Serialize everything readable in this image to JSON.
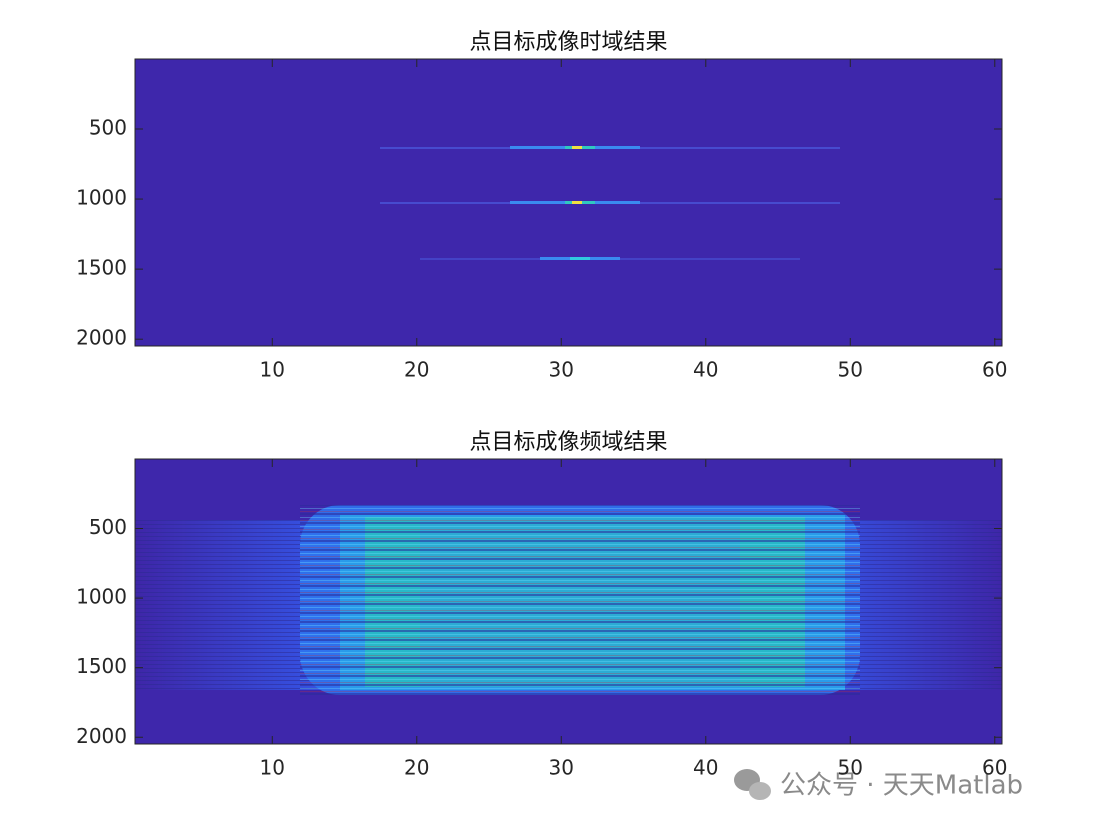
{
  "chart_data": [
    {
      "type": "heatmap",
      "title": "点目标成像时域结果",
      "xlim": [
        0.5,
        60.5
      ],
      "xticks": [
        10,
        20,
        30,
        40,
        50,
        60
      ],
      "ylim": [
        0.5,
        2048.5
      ],
      "yticks": [
        500,
        1000,
        1500,
        2000
      ],
      "y_reversed": true
    },
    {
      "type": "heatmap",
      "title": "点目标成像频域结果",
      "xlim": [
        0.5,
        60.5
      ],
      "xticks": [
        10,
        20,
        30,
        40,
        50,
        60
      ],
      "ylim": [
        0.5,
        2048.5
      ],
      "yticks": [
        500,
        1000,
        1500,
        2000
      ],
      "y_reversed": true
    }
  ],
  "watermark": "公众号 · 天天Matlab"
}
